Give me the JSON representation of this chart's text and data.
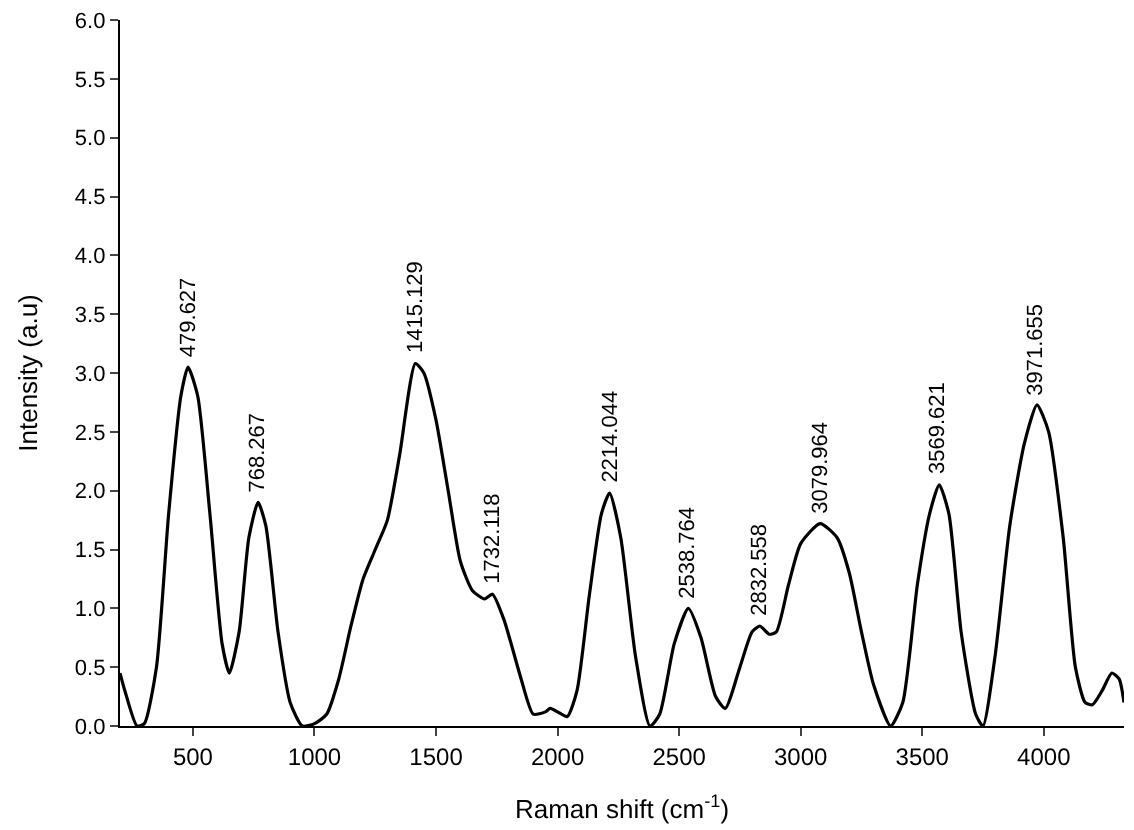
{
  "chart_data": {
    "type": "line",
    "xlabel": "Raman shift (cm$^{-1}$)",
    "ylabel": "Intensity (a.u)",
    "xlim": [
      200,
      4330
    ],
    "xticks": [
      500,
      1000,
      1500,
      2000,
      2500,
      3000,
      3500,
      4000
    ],
    "ylim": [
      0,
      6
    ],
    "yticks": [
      {
        "value": 0,
        "label": "0.0"
      },
      {
        "value": 0.5,
        "label": "0.5"
      },
      {
        "value": 1,
        "label": "1.0"
      },
      {
        "value": 1.5,
        "label": "1.5"
      },
      {
        "value": 2,
        "label": "2.0"
      },
      {
        "value": 2.5,
        "label": "2.5"
      },
      {
        "value": 3,
        "label": "3.0"
      },
      {
        "value": 3.5,
        "label": "3.5"
      },
      {
        "value": 4,
        "label": "4.0"
      },
      {
        "value": 4.5,
        "label": "4.5"
      },
      {
        "value": 5,
        "label": "5.0"
      },
      {
        "value": 5.5,
        "label": "5.5"
      },
      {
        "value": 6,
        "label": "6.0"
      }
    ],
    "marker": "none",
    "line_style": "solid",
    "series": [
      {
        "color": "#000000",
        "x": [
          200,
          220,
          270,
          300,
          350,
          400,
          450,
          480,
          520,
          570,
          620,
          650,
          690,
          730,
          768,
          800,
          850,
          900,
          950,
          1000,
          1050,
          1100,
          1150,
          1200,
          1250,
          1300,
          1350,
          1415,
          1450,
          1500,
          1550,
          1600,
          1650,
          1700,
          1732,
          1780,
          1850,
          1900,
          1950,
          1970,
          2000,
          2040,
          2080,
          2130,
          2180,
          2214,
          2260,
          2320,
          2380,
          2420,
          2480,
          2538,
          2590,
          2650,
          2690,
          2750,
          2800,
          2832,
          2870,
          2900,
          2950,
          3000,
          3080,
          3150,
          3200,
          3250,
          3300,
          3370,
          3420,
          3480,
          3530,
          3570,
          3610,
          3660,
          3720,
          3750,
          3800,
          3860,
          3920,
          3972,
          4020,
          4080,
          4130,
          4170,
          4200,
          4240,
          4280,
          4310,
          4330
        ],
        "values": [
          0.45,
          0.3,
          0.0,
          0.02,
          0.5,
          1.8,
          2.8,
          3.05,
          2.8,
          1.8,
          0.7,
          0.45,
          0.8,
          1.6,
          1.9,
          1.7,
          0.8,
          0.2,
          0.0,
          0.02,
          0.1,
          0.4,
          0.85,
          1.25,
          1.5,
          1.75,
          2.3,
          3.08,
          3.0,
          2.6,
          2.0,
          1.4,
          1.15,
          1.08,
          1.12,
          0.9,
          0.4,
          0.1,
          0.12,
          0.15,
          0.12,
          0.08,
          0.3,
          1.1,
          1.8,
          1.98,
          1.6,
          0.6,
          0.0,
          0.1,
          0.7,
          1.0,
          0.75,
          0.25,
          0.15,
          0.5,
          0.8,
          0.85,
          0.78,
          0.8,
          1.2,
          1.55,
          1.72,
          1.6,
          1.3,
          0.8,
          0.35,
          0.0,
          0.2,
          1.2,
          1.8,
          2.05,
          1.8,
          0.8,
          0.1,
          0.0,
          0.6,
          1.7,
          2.4,
          2.73,
          2.5,
          1.6,
          0.5,
          0.2,
          0.18,
          0.3,
          0.45,
          0.4,
          0.2
        ]
      }
    ],
    "annotations": [
      {
        "text": "479.627",
        "x": 480,
        "y": 3.05
      },
      {
        "text": "768.267",
        "x": 768,
        "y": 1.9
      },
      {
        "text": "1415.129",
        "x": 1415,
        "y": 3.08
      },
      {
        "text": "1732.118",
        "x": 1732,
        "y": 1.12
      },
      {
        "text": "2214.044",
        "x": 2214,
        "y": 1.98
      },
      {
        "text": "2538.764",
        "x": 2538,
        "y": 1.0
      },
      {
        "text": "2832.558",
        "x": 2832,
        "y": 0.85
      },
      {
        "text": "3079.964",
        "x": 3080,
        "y": 1.72
      },
      {
        "text": "3569.621",
        "x": 3570,
        "y": 2.05
      },
      {
        "text": "3971.655",
        "x": 3972,
        "y": 2.73
      }
    ]
  }
}
